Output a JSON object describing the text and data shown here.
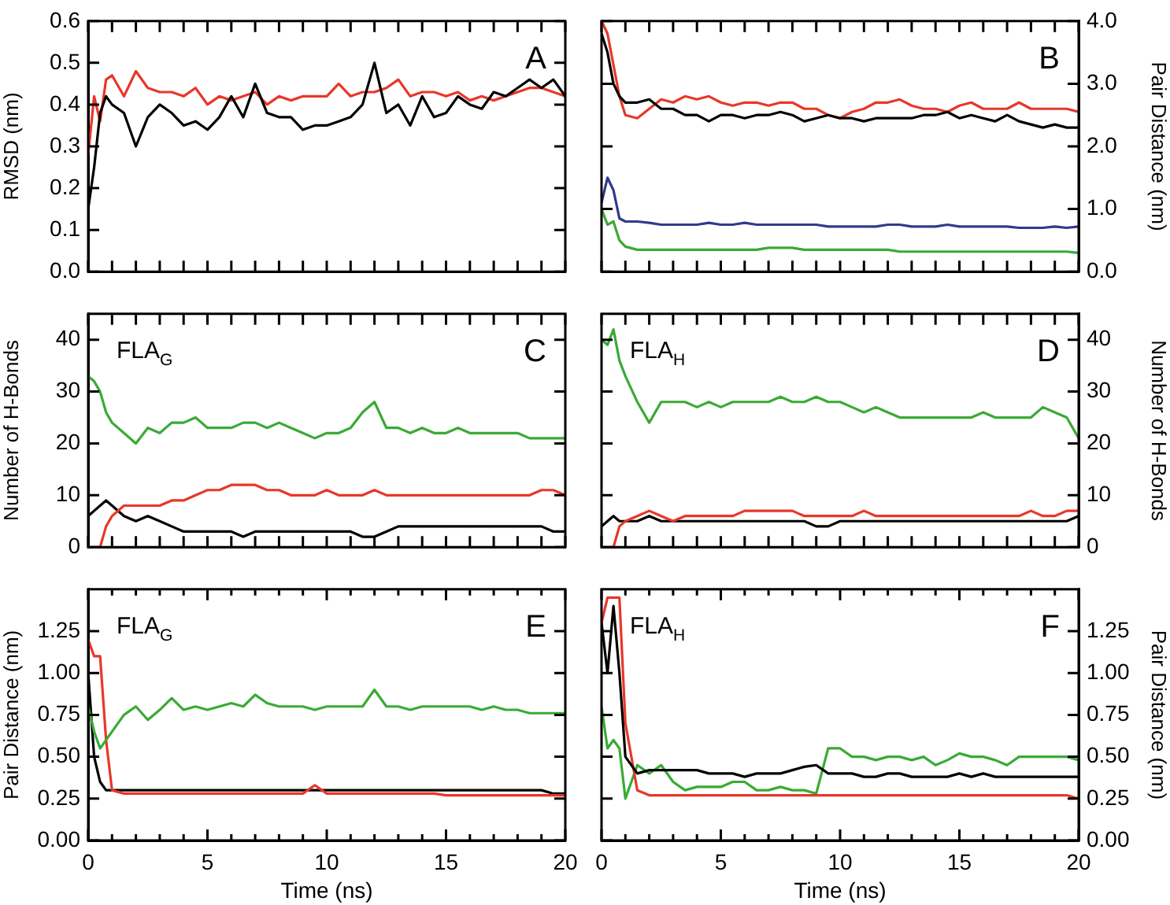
{
  "chart_data": [
    {
      "type": "line",
      "ylabel": "RMSD (nm)",
      "annotations": [
        "A"
      ],
      "tick_labels": "y",
      "x": [
        0,
        0.25,
        0.5,
        0.75,
        1,
        1.5,
        2,
        2.5,
        3,
        3.5,
        4,
        4.5,
        5,
        5.5,
        6,
        6.5,
        7,
        7.5,
        8,
        8.5,
        9,
        9.5,
        10,
        10.5,
        11,
        11.5,
        12,
        12.5,
        13,
        13.5,
        14,
        14.5,
        15,
        15.5,
        16,
        16.5,
        17,
        17.5,
        18,
        18.5,
        19,
        19.5,
        20
      ],
      "xlim": [
        0,
        20
      ],
      "xticks": [
        0,
        1,
        2,
        3,
        4,
        5,
        6,
        7,
        8,
        9,
        10,
        11,
        12,
        13,
        14,
        15,
        16,
        17,
        18,
        19,
        20
      ],
      "ylim": [
        0,
        0.6
      ],
      "yticks": [
        {
          "value": 0,
          "label": "0.0"
        },
        0.1,
        0.2,
        0.3,
        0.4,
        0.5,
        0.6
      ],
      "series": [
        {
          "color": "#000000",
          "values": [
            0.15,
            0.25,
            0.38,
            0.42,
            0.4,
            0.38,
            0.3,
            0.37,
            0.4,
            0.38,
            0.35,
            0.36,
            0.34,
            0.37,
            0.42,
            0.37,
            0.45,
            0.38,
            0.37,
            0.37,
            0.34,
            0.35,
            0.35,
            0.36,
            0.37,
            0.4,
            0.5,
            0.38,
            0.4,
            0.35,
            0.42,
            0.37,
            0.38,
            0.42,
            0.4,
            0.39,
            0.43,
            0.42,
            0.44,
            0.46,
            0.44,
            0.46,
            0.42
          ]
        },
        {
          "color": "#e8372a",
          "values": [
            0.28,
            0.42,
            0.36,
            0.46,
            0.47,
            0.42,
            0.48,
            0.44,
            0.43,
            0.43,
            0.42,
            0.44,
            0.4,
            0.42,
            0.41,
            0.42,
            0.43,
            0.4,
            0.42,
            0.41,
            0.42,
            0.42,
            0.42,
            0.45,
            0.42,
            0.43,
            0.43,
            0.44,
            0.46,
            0.42,
            0.43,
            0.43,
            0.42,
            0.43,
            0.41,
            0.42,
            0.41,
            0.42,
            0.43,
            0.44,
            0.44,
            0.43,
            0.42
          ]
        }
      ]
    },
    {
      "type": "line",
      "ylabel": "Pair Distance (nm)",
      "annotations": [
        "B"
      ],
      "tick_labels": "y",
      "x": [
        0,
        0.25,
        0.5,
        0.75,
        1,
        1.5,
        2,
        2.5,
        3,
        3.5,
        4,
        4.5,
        5,
        5.5,
        6,
        6.5,
        7,
        7.5,
        8,
        8.5,
        9,
        9.5,
        10,
        10.5,
        11,
        11.5,
        12,
        12.5,
        13,
        13.5,
        14,
        14.5,
        15,
        15.5,
        16,
        16.5,
        17,
        17.5,
        18,
        18.5,
        19,
        19.5,
        20
      ],
      "xlim": [
        0,
        20
      ],
      "xticks": [
        0,
        1,
        2,
        3,
        4,
        5,
        6,
        7,
        8,
        9,
        10,
        11,
        12,
        13,
        14,
        15,
        16,
        17,
        18,
        19,
        20
      ],
      "ylim": [
        0,
        4
      ],
      "yticks": [
        {
          "value": 0,
          "label": "0.0"
        },
        {
          "value": 1,
          "label": "1.0"
        },
        {
          "value": 2,
          "label": "2.0"
        },
        {
          "value": 3,
          "label": "3.0"
        },
        {
          "value": 4,
          "label": "4.0"
        }
      ],
      "series": [
        {
          "color": "#000000",
          "values": [
            3.8,
            3.5,
            3.0,
            2.8,
            2.7,
            2.7,
            2.75,
            2.6,
            2.6,
            2.5,
            2.5,
            2.4,
            2.5,
            2.5,
            2.45,
            2.5,
            2.5,
            2.55,
            2.5,
            2.4,
            2.45,
            2.5,
            2.45,
            2.45,
            2.4,
            2.45,
            2.45,
            2.45,
            2.45,
            2.5,
            2.5,
            2.55,
            2.45,
            2.5,
            2.45,
            2.4,
            2.5,
            2.4,
            2.35,
            2.3,
            2.35,
            2.3,
            2.3
          ]
        },
        {
          "color": "#e8372a",
          "values": [
            4.0,
            3.8,
            3.3,
            2.8,
            2.5,
            2.45,
            2.6,
            2.75,
            2.7,
            2.8,
            2.75,
            2.8,
            2.7,
            2.65,
            2.7,
            2.7,
            2.65,
            2.7,
            2.7,
            2.6,
            2.6,
            2.5,
            2.45,
            2.55,
            2.6,
            2.7,
            2.7,
            2.75,
            2.65,
            2.6,
            2.6,
            2.55,
            2.65,
            2.7,
            2.6,
            2.6,
            2.6,
            2.7,
            2.6,
            2.6,
            2.6,
            2.6,
            2.55
          ]
        },
        {
          "color": "#2e3b8c",
          "values": [
            1.1,
            1.5,
            1.3,
            0.85,
            0.8,
            0.8,
            0.78,
            0.75,
            0.75,
            0.75,
            0.75,
            0.78,
            0.75,
            0.75,
            0.78,
            0.75,
            0.75,
            0.75,
            0.75,
            0.75,
            0.75,
            0.72,
            0.72,
            0.72,
            0.72,
            0.72,
            0.75,
            0.75,
            0.72,
            0.72,
            0.72,
            0.75,
            0.72,
            0.72,
            0.72,
            0.72,
            0.72,
            0.7,
            0.7,
            0.7,
            0.72,
            0.7,
            0.72
          ]
        },
        {
          "color": "#3aaa35",
          "values": [
            1.0,
            0.75,
            0.8,
            0.5,
            0.4,
            0.35,
            0.35,
            0.35,
            0.35,
            0.35,
            0.35,
            0.35,
            0.35,
            0.35,
            0.35,
            0.35,
            0.38,
            0.38,
            0.38,
            0.35,
            0.35,
            0.35,
            0.35,
            0.35,
            0.35,
            0.35,
            0.35,
            0.32,
            0.32,
            0.32,
            0.32,
            0.32,
            0.32,
            0.32,
            0.32,
            0.32,
            0.32,
            0.32,
            0.32,
            0.32,
            0.32,
            0.32,
            0.3
          ]
        }
      ]
    },
    {
      "type": "line",
      "ylabel": "Number of H-Bonds",
      "annotations": [
        "C",
        "FLA$_{G}$"
      ],
      "tick_labels": "y",
      "x": [
        0,
        0.25,
        0.5,
        0.75,
        1,
        1.5,
        2,
        2.5,
        3,
        3.5,
        4,
        4.5,
        5,
        5.5,
        6,
        6.5,
        7,
        7.5,
        8,
        8.5,
        9,
        9.5,
        10,
        10.5,
        11,
        11.5,
        12,
        12.5,
        13,
        13.5,
        14,
        14.5,
        15,
        15.5,
        16,
        16.5,
        17,
        17.5,
        18,
        18.5,
        19,
        19.5,
        20
      ],
      "xlim": [
        0,
        20
      ],
      "xticks": [
        0,
        1,
        2,
        3,
        4,
        5,
        6,
        7,
        8,
        9,
        10,
        11,
        12,
        13,
        14,
        15,
        16,
        17,
        18,
        19,
        20
      ],
      "ylim": [
        0,
        45
      ],
      "yticks": [
        0,
        10,
        20,
        30,
        40
      ],
      "series": [
        {
          "color": "#3aaa35",
          "values": [
            33,
            32,
            30,
            26,
            24,
            22,
            20,
            23,
            22,
            24,
            24,
            25,
            23,
            23,
            23,
            24,
            24,
            23,
            24,
            23,
            22,
            21,
            22,
            22,
            23,
            26,
            28,
            23,
            23,
            22,
            23,
            22,
            22,
            23,
            22,
            22,
            22,
            22,
            22,
            21,
            21,
            21,
            21
          ]
        },
        {
          "color": "#e8372a",
          "values": [
            null,
            null,
            0,
            4,
            6,
            8,
            8,
            8,
            8,
            9,
            9,
            10,
            11,
            11,
            12,
            12,
            12,
            11,
            11,
            10,
            10,
            10,
            11,
            10,
            10,
            10,
            11,
            10,
            10,
            10,
            10,
            10,
            10,
            10,
            10,
            10,
            10,
            10,
            10,
            10,
            11,
            11,
            10
          ]
        },
        {
          "color": "#000000",
          "values": [
            6,
            7,
            8,
            9,
            8,
            6,
            5,
            6,
            5,
            4,
            3,
            3,
            3,
            3,
            3,
            2,
            3,
            3,
            3,
            3,
            3,
            3,
            3,
            3,
            3,
            2,
            2,
            3,
            4,
            4,
            4,
            4,
            4,
            4,
            4,
            4,
            4,
            4,
            4,
            4,
            4,
            3,
            3
          ]
        }
      ]
    },
    {
      "type": "line",
      "ylabel": "Number of H-Bonds",
      "annotations": [
        "D",
        "FLA$_{H}$"
      ],
      "tick_labels": "y",
      "x": [
        0,
        0.25,
        0.5,
        0.75,
        1,
        1.5,
        2,
        2.5,
        3,
        3.5,
        4,
        4.5,
        5,
        5.5,
        6,
        6.5,
        7,
        7.5,
        8,
        8.5,
        9,
        9.5,
        10,
        10.5,
        11,
        11.5,
        12,
        12.5,
        13,
        13.5,
        14,
        14.5,
        15,
        15.5,
        16,
        16.5,
        17,
        17.5,
        18,
        18.5,
        19,
        19.5,
        20
      ],
      "xlim": [
        0,
        20
      ],
      "xticks": [
        0,
        1,
        2,
        3,
        4,
        5,
        6,
        7,
        8,
        9,
        10,
        11,
        12,
        13,
        14,
        15,
        16,
        17,
        18,
        19,
        20
      ],
      "ylim": [
        0,
        45
      ],
      "yticks": [
        0,
        10,
        20,
        30,
        40
      ],
      "series": [
        {
          "color": "#3aaa35",
          "values": [
            40,
            39,
            42,
            36,
            33,
            28,
            24,
            28,
            28,
            28,
            27,
            28,
            27,
            28,
            28,
            28,
            28,
            29,
            28,
            28,
            29,
            28,
            28,
            27,
            26,
            27,
            26,
            25,
            25,
            25,
            25,
            25,
            25,
            25,
            26,
            25,
            25,
            25,
            25,
            27,
            26,
            25,
            21
          ]
        },
        {
          "color": "#e8372a",
          "values": [
            null,
            null,
            0,
            4,
            5,
            6,
            7,
            6,
            5,
            6,
            6,
            6,
            6,
            6,
            7,
            7,
            7,
            7,
            7,
            6,
            6,
            6,
            6,
            6,
            7,
            6,
            6,
            6,
            6,
            6,
            6,
            6,
            6,
            6,
            6,
            6,
            6,
            6,
            7,
            6,
            6,
            7,
            7
          ]
        },
        {
          "color": "#000000",
          "values": [
            4,
            5,
            6,
            5,
            5,
            5,
            6,
            5,
            5,
            5,
            5,
            5,
            5,
            5,
            5,
            5,
            5,
            5,
            5,
            5,
            4,
            4,
            5,
            5,
            5,
            5,
            5,
            5,
            5,
            5,
            5,
            5,
            5,
            5,
            5,
            5,
            5,
            5,
            5,
            5,
            5,
            5,
            6
          ]
        }
      ]
    },
    {
      "type": "line",
      "xlabel": "Time (ns)",
      "ylabel": "Pair Distance (nm)",
      "annotations": [
        "E",
        "FLA$_{G}$"
      ],
      "x": [
        0,
        0.25,
        0.5,
        0.75,
        1,
        1.5,
        2,
        2.5,
        3,
        3.5,
        4,
        4.5,
        5,
        5.5,
        6,
        6.5,
        7,
        7.5,
        8,
        8.5,
        9,
        9.5,
        10,
        10.5,
        11,
        11.5,
        12,
        12.5,
        13,
        13.5,
        14,
        14.5,
        15,
        15.5,
        16,
        16.5,
        17,
        17.5,
        18,
        18.5,
        19,
        19.5,
        20
      ],
      "xlim": [
        0,
        20
      ],
      "xticks": [
        0,
        {
          "value": 1,
          "label": null
        },
        {
          "value": 2,
          "label": null
        },
        {
          "value": 3,
          "label": null
        },
        {
          "value": 4,
          "label": null
        },
        5,
        {
          "value": 6,
          "label": null
        },
        {
          "value": 7,
          "label": null
        },
        {
          "value": 8,
          "label": null
        },
        {
          "value": 9,
          "label": null
        },
        10,
        {
          "value": 11,
          "label": null
        },
        {
          "value": 12,
          "label": null
        },
        {
          "value": 13,
          "label": null
        },
        {
          "value": 14,
          "label": null
        },
        15,
        {
          "value": 16,
          "label": null
        },
        {
          "value": 17,
          "label": null
        },
        {
          "value": 18,
          "label": null
        },
        {
          "value": 19,
          "label": null
        },
        20
      ],
      "ylim": [
        0,
        1.5
      ],
      "yticks": [
        {
          "value": 0,
          "label": "0.00"
        },
        {
          "value": 0.25,
          "label": "0.25"
        },
        {
          "value": 0.5,
          "label": "0.50"
        },
        {
          "value": 0.75,
          "label": "0.75"
        },
        {
          "value": 1,
          "label": "1.00"
        },
        {
          "value": 1.25,
          "label": "1.25"
        }
      ],
      "series": [
        {
          "color": "#3aaa35",
          "values": [
            0.8,
            0.65,
            0.55,
            0.6,
            0.65,
            0.75,
            0.8,
            0.72,
            0.78,
            0.85,
            0.78,
            0.8,
            0.78,
            0.8,
            0.82,
            0.8,
            0.87,
            0.82,
            0.8,
            0.8,
            0.8,
            0.78,
            0.8,
            0.8,
            0.8,
            0.8,
            0.9,
            0.8,
            0.8,
            0.78,
            0.8,
            0.8,
            0.8,
            0.8,
            0.8,
            0.78,
            0.8,
            0.78,
            0.78,
            0.76,
            0.76,
            0.76,
            0.76
          ]
        },
        {
          "color": "#e8372a",
          "values": [
            1.2,
            1.1,
            1.1,
            0.6,
            0.3,
            0.28,
            0.28,
            0.28,
            0.28,
            0.28,
            0.28,
            0.28,
            0.28,
            0.28,
            0.28,
            0.28,
            0.28,
            0.28,
            0.28,
            0.28,
            0.28,
            0.33,
            0.28,
            0.28,
            0.28,
            0.28,
            0.28,
            0.28,
            0.28,
            0.28,
            0.28,
            0.28,
            0.27,
            0.27,
            0.27,
            0.27,
            0.27,
            0.27,
            0.27,
            0.27,
            0.27,
            0.27,
            0.27
          ]
        },
        {
          "color": "#000000",
          "values": [
            1.0,
            0.5,
            0.35,
            0.3,
            0.3,
            0.3,
            0.3,
            0.3,
            0.3,
            0.3,
            0.3,
            0.3,
            0.3,
            0.3,
            0.3,
            0.3,
            0.3,
            0.3,
            0.3,
            0.3,
            0.3,
            0.3,
            0.3,
            0.3,
            0.3,
            0.3,
            0.3,
            0.3,
            0.3,
            0.3,
            0.3,
            0.3,
            0.3,
            0.3,
            0.3,
            0.3,
            0.3,
            0.3,
            0.3,
            0.3,
            0.3,
            0.28,
            0.28
          ]
        }
      ]
    },
    {
      "type": "line",
      "xlabel": "Time (ns)",
      "ylabel": "Pair Distance (nm)",
      "annotations": [
        "F",
        "FLA$_{H}$"
      ],
      "x": [
        0,
        0.25,
        0.5,
        0.75,
        1,
        1.5,
        2,
        2.5,
        3,
        3.5,
        4,
        4.5,
        5,
        5.5,
        6,
        6.5,
        7,
        7.5,
        8,
        8.5,
        9,
        9.5,
        10,
        10.5,
        11,
        11.5,
        12,
        12.5,
        13,
        13.5,
        14,
        14.5,
        15,
        15.5,
        16,
        16.5,
        17,
        17.5,
        18,
        18.5,
        19,
        19.5,
        20
      ],
      "xlim": [
        0,
        20
      ],
      "xticks": [
        0,
        {
          "value": 1,
          "label": null
        },
        {
          "value": 2,
          "label": null
        },
        {
          "value": 3,
          "label": null
        },
        {
          "value": 4,
          "label": null
        },
        5,
        {
          "value": 6,
          "label": null
        },
        {
          "value": 7,
          "label": null
        },
        {
          "value": 8,
          "label": null
        },
        {
          "value": 9,
          "label": null
        },
        10,
        {
          "value": 11,
          "label": null
        },
        {
          "value": 12,
          "label": null
        },
        {
          "value": 13,
          "label": null
        },
        {
          "value": 14,
          "label": null
        },
        15,
        {
          "value": 16,
          "label": null
        },
        {
          "value": 17,
          "label": null
        },
        {
          "value": 18,
          "label": null
        },
        {
          "value": 19,
          "label": null
        },
        20
      ],
      "ylim": [
        0,
        1.5
      ],
      "yticks": [
        {
          "value": 0,
          "label": "0.00"
        },
        {
          "value": 0.25,
          "label": "0.25"
        },
        {
          "value": 0.5,
          "label": "0.50"
        },
        {
          "value": 0.75,
          "label": "0.75"
        },
        {
          "value": 1,
          "label": "1.00"
        },
        {
          "value": 1.25,
          "label": "1.25"
        }
      ],
      "series": [
        {
          "color": "#000000",
          "values": [
            1.3,
            1.0,
            1.4,
            1.0,
            0.5,
            0.4,
            0.42,
            0.42,
            0.42,
            0.42,
            0.42,
            0.4,
            0.4,
            0.4,
            0.38,
            0.4,
            0.4,
            0.4,
            0.42,
            0.44,
            0.45,
            0.4,
            0.4,
            0.4,
            0.38,
            0.38,
            0.4,
            0.4,
            0.38,
            0.38,
            0.38,
            0.38,
            0.4,
            0.38,
            0.4,
            0.38,
            0.38,
            0.38,
            0.38,
            0.38,
            0.38,
            0.38,
            0.38
          ]
        },
        {
          "color": "#e8372a",
          "values": [
            1.3,
            1.45,
            1.45,
            1.45,
            0.7,
            0.3,
            0.27,
            0.27,
            0.27,
            0.27,
            0.27,
            0.27,
            0.27,
            0.27,
            0.27,
            0.27,
            0.27,
            0.27,
            0.27,
            0.27,
            0.27,
            0.27,
            0.27,
            0.27,
            0.27,
            0.27,
            0.27,
            0.27,
            0.27,
            0.27,
            0.27,
            0.27,
            0.27,
            0.27,
            0.27,
            0.27,
            0.27,
            0.27,
            0.27,
            0.27,
            0.27,
            0.27,
            0.25
          ]
        },
        {
          "color": "#3aaa35",
          "values": [
            0.8,
            0.55,
            0.6,
            0.55,
            0.25,
            0.45,
            0.4,
            0.45,
            0.35,
            0.3,
            0.32,
            0.32,
            0.32,
            0.35,
            0.35,
            0.3,
            0.3,
            0.32,
            0.3,
            0.3,
            0.28,
            0.55,
            0.55,
            0.5,
            0.5,
            0.48,
            0.5,
            0.5,
            0.48,
            0.5,
            0.45,
            0.48,
            0.52,
            0.5,
            0.5,
            0.48,
            0.45,
            0.5,
            0.5,
            0.5,
            0.5,
            0.5,
            0.48
          ]
        }
      ]
    }
  ]
}
